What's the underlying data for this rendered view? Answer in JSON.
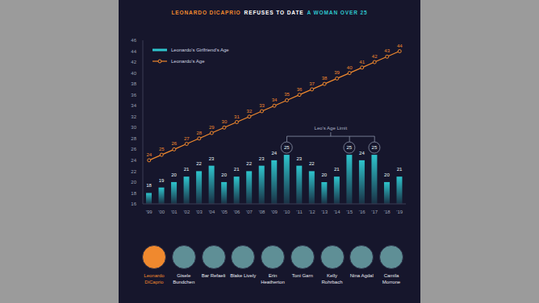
{
  "chart_data": {
    "type": "bar",
    "title": [
      {
        "text": "LEONARDO DICAPRIO",
        "color": "#f0892e"
      },
      {
        "text": "REFUSES TO DATE",
        "color": "#ffffff"
      },
      {
        "text": "A WOMAN OVER 25",
        "color": "#2ec4cc"
      }
    ],
    "categories": [
      "'99",
      "'00",
      "'01",
      "'02",
      "'03",
      "'04",
      "'05",
      "'06",
      "'07",
      "'08",
      "'09",
      "'10",
      "'11",
      "'12",
      "'13",
      "'14",
      "'15",
      "'16",
      "'17",
      "'18",
      "'19"
    ],
    "series": [
      {
        "name": "Leonardo's Girlfriend's Age",
        "type": "bar",
        "color": "#2ec4cc",
        "values": [
          18,
          19,
          20,
          21,
          22,
          23,
          20,
          21,
          22,
          23,
          24,
          25,
          23,
          22,
          20,
          21,
          25,
          24,
          25,
          20,
          21
        ]
      },
      {
        "name": "Leonardo's Age",
        "type": "line",
        "color": "#f0892e",
        "marker": "circle",
        "values": [
          24,
          25,
          26,
          27,
          28,
          29,
          30,
          31,
          32,
          33,
          34,
          35,
          36,
          37,
          38,
          39,
          40,
          41,
          42,
          43,
          44
        ]
      }
    ],
    "ylim": [
      16,
      46
    ],
    "yticks": [
      16,
      18,
      20,
      22,
      24,
      26,
      28,
      30,
      32,
      34,
      36,
      38,
      40,
      42,
      44,
      46
    ],
    "grid": false,
    "legend": "upper left",
    "data_labels": true,
    "age_limit": {
      "label": "Leo's Age Limit",
      "value": 25
    },
    "people": [
      {
        "name": "Leonardo DiCaprio",
        "color": "#f0892e"
      },
      {
        "name": "Gisele Bundchen"
      },
      {
        "name": "Bar Refaeli"
      },
      {
        "name": "Blake Lively"
      },
      {
        "name": "Erin Heatherton"
      },
      {
        "name": "Toni Garn"
      },
      {
        "name": "Kelly Rohrbach"
      },
      {
        "name": "Nina Agdal"
      },
      {
        "name": "Camila Morrone"
      }
    ]
  }
}
